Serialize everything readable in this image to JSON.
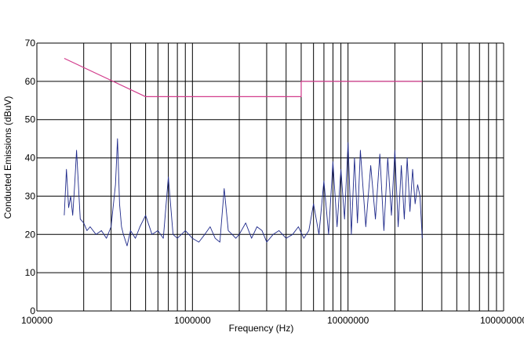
{
  "chart_data": {
    "type": "line",
    "title": "",
    "xlabel": "Frequency (Hz)",
    "ylabel": "Conducted Emissions (dBuV)",
    "x_scale": "log",
    "xlim": [
      100000,
      100000000
    ],
    "ylim": [
      0,
      70
    ],
    "grid": true,
    "legend": "none",
    "x_tick_labels": [
      "100000",
      "1000000",
      "10000000",
      "100000000"
    ],
    "y_tick_labels": [
      "0",
      "10",
      "20",
      "30",
      "40",
      "50",
      "60",
      "70"
    ],
    "colors": {
      "limit": "#d23c8c",
      "emissions": "#1f2a8a",
      "grid": "#000000"
    },
    "series": [
      {
        "role": "limit",
        "x": [
          150000,
          500000,
          5000000,
          5000000,
          30000000
        ],
        "y": [
          66,
          56,
          56,
          60,
          60
        ]
      },
      {
        "role": "measured",
        "x": [
          150000,
          155000,
          160000,
          165000,
          170000,
          175000,
          180000,
          190000,
          200000,
          210000,
          220000,
          240000,
          260000,
          280000,
          300000,
          320000,
          330000,
          340000,
          350000,
          360000,
          380000,
          400000,
          430000,
          460000,
          500000,
          550000,
          600000,
          650000,
          700000,
          750000,
          800000,
          900000,
          1000000,
          1100000,
          1200000,
          1300000,
          1400000,
          1500000,
          1600000,
          1700000,
          1800000,
          1900000,
          2000000,
          2200000,
          2400000,
          2600000,
          2800000,
          3000000,
          3300000,
          3600000,
          4000000,
          4400000,
          4800000,
          5200000,
          5600000,
          6000000,
          6500000,
          7000000,
          7500000,
          8000000,
          8500000,
          9000000,
          9500000,
          10000000,
          10500000,
          11000000,
          11500000,
          12000000,
          13000000,
          14000000,
          15000000,
          16000000,
          17000000,
          18000000,
          19000000,
          20000000,
          21000000,
          22000000,
          23000000,
          24000000,
          25000000,
          26000000,
          27000000,
          28000000,
          29000000,
          30000000
        ],
        "y": [
          25,
          37,
          27,
          30,
          25,
          33,
          42,
          24,
          23,
          21,
          22,
          20,
          21,
          19,
          22,
          33,
          45,
          28,
          22,
          20,
          17,
          21,
          19,
          22,
          25,
          20,
          21,
          19,
          35,
          20,
          19,
          21,
          19,
          18,
          20,
          22,
          19,
          18,
          32,
          21,
          20,
          19,
          20,
          23,
          19,
          22,
          21,
          18,
          20,
          21,
          19,
          20,
          22,
          19,
          21,
          28,
          20,
          34,
          20,
          39,
          22,
          37,
          24,
          44,
          20,
          40,
          23,
          42,
          22,
          38,
          24,
          41,
          21,
          40,
          25,
          42,
          22,
          38,
          24,
          40,
          26,
          37,
          28,
          33,
          30,
          19
        ]
      }
    ]
  }
}
